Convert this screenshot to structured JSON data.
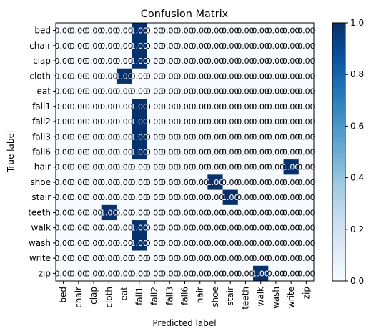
{
  "chart_data": {
    "type": "heatmap",
    "title": "Confusion Matrix",
    "xlabel": "Predicted label",
    "ylabel": "True label",
    "row_labels": [
      "bed",
      "chair",
      "clap",
      "cloth",
      "eat",
      "fall1",
      "fall2",
      "fall3",
      "fall6",
      "hair",
      "shoe",
      "stair",
      "teeth",
      "walk",
      "wash",
      "write",
      "zip"
    ],
    "col_labels": [
      "bed",
      "chair",
      "clap",
      "cloth",
      "eat",
      "fall1",
      "fall2",
      "fall3",
      "fall6",
      "hair",
      "shoe",
      "stair",
      "teeth",
      "walk",
      "wash",
      "write",
      "zip"
    ],
    "values": [
      [
        0,
        0,
        0,
        0,
        0,
        1,
        0,
        0,
        0,
        0,
        0,
        0,
        0,
        0,
        0,
        0,
        0
      ],
      [
        0,
        0,
        0,
        0,
        0,
        1,
        0,
        0,
        0,
        0,
        0,
        0,
        0,
        0,
        0,
        0,
        0
      ],
      [
        0,
        0,
        0,
        0,
        0,
        1,
        0,
        0,
        0,
        0,
        0,
        0,
        0,
        0,
        0,
        0,
        0
      ],
      [
        0,
        0,
        0,
        0,
        1,
        0,
        0,
        0,
        0,
        0,
        0,
        0,
        0,
        0,
        0,
        0,
        0
      ],
      [
        0,
        0,
        0,
        0,
        0,
        0,
        0,
        0,
        0,
        0,
        0,
        0,
        0,
        0,
        0,
        0,
        0
      ],
      [
        0,
        0,
        0,
        0,
        0,
        1,
        0,
        0,
        0,
        0,
        0,
        0,
        0,
        0,
        0,
        0,
        0
      ],
      [
        0,
        0,
        0,
        0,
        0,
        1,
        0,
        0,
        0,
        0,
        0,
        0,
        0,
        0,
        0,
        0,
        0
      ],
      [
        0,
        0,
        0,
        0,
        0,
        1,
        0,
        0,
        0,
        0,
        0,
        0,
        0,
        0,
        0,
        0,
        0
      ],
      [
        0,
        0,
        0,
        0,
        0,
        1,
        0,
        0,
        0,
        0,
        0,
        0,
        0,
        0,
        0,
        0,
        0
      ],
      [
        0,
        0,
        0,
        0,
        0,
        0,
        0,
        0,
        0,
        0,
        0,
        0,
        0,
        0,
        0,
        1,
        0
      ],
      [
        0,
        0,
        0,
        0,
        0,
        0,
        0,
        0,
        0,
        0,
        1,
        0,
        0,
        0,
        0,
        0,
        0
      ],
      [
        0,
        0,
        0,
        0,
        0,
        0,
        0,
        0,
        0,
        0,
        0,
        1,
        0,
        0,
        0,
        0,
        0
      ],
      [
        0,
        0,
        0,
        1,
        0,
        0,
        0,
        0,
        0,
        0,
        0,
        0,
        0,
        0,
        0,
        0,
        0
      ],
      [
        0,
        0,
        0,
        0,
        0,
        1,
        0,
        0,
        0,
        0,
        0,
        0,
        0,
        0,
        0,
        0,
        0
      ],
      [
        0,
        0,
        0,
        0,
        0,
        1,
        0,
        0,
        0,
        0,
        0,
        0,
        0,
        0,
        0,
        0,
        0
      ],
      [
        0,
        0,
        0,
        0,
        0,
        0,
        0,
        0,
        0,
        0,
        0,
        0,
        0,
        0,
        0,
        0,
        0
      ],
      [
        0,
        0,
        0,
        0,
        0,
        0,
        0,
        0,
        0,
        0,
        0,
        0,
        0,
        1,
        0,
        0,
        0
      ]
    ],
    "cell_text_one": "1.00",
    "cell_text_zero": "0.00",
    "colorbar": {
      "colormap": "Blues",
      "ticks": [
        "0.0",
        "0.2",
        "0.4",
        "0.6",
        "0.8",
        "1.0"
      ],
      "tick_values": [
        0,
        0.2,
        0.4,
        0.6,
        0.8,
        1.0
      ],
      "range": [
        0,
        1
      ]
    },
    "colors": {
      "low": "#f7fbff",
      "high": "#08306b"
    }
  }
}
